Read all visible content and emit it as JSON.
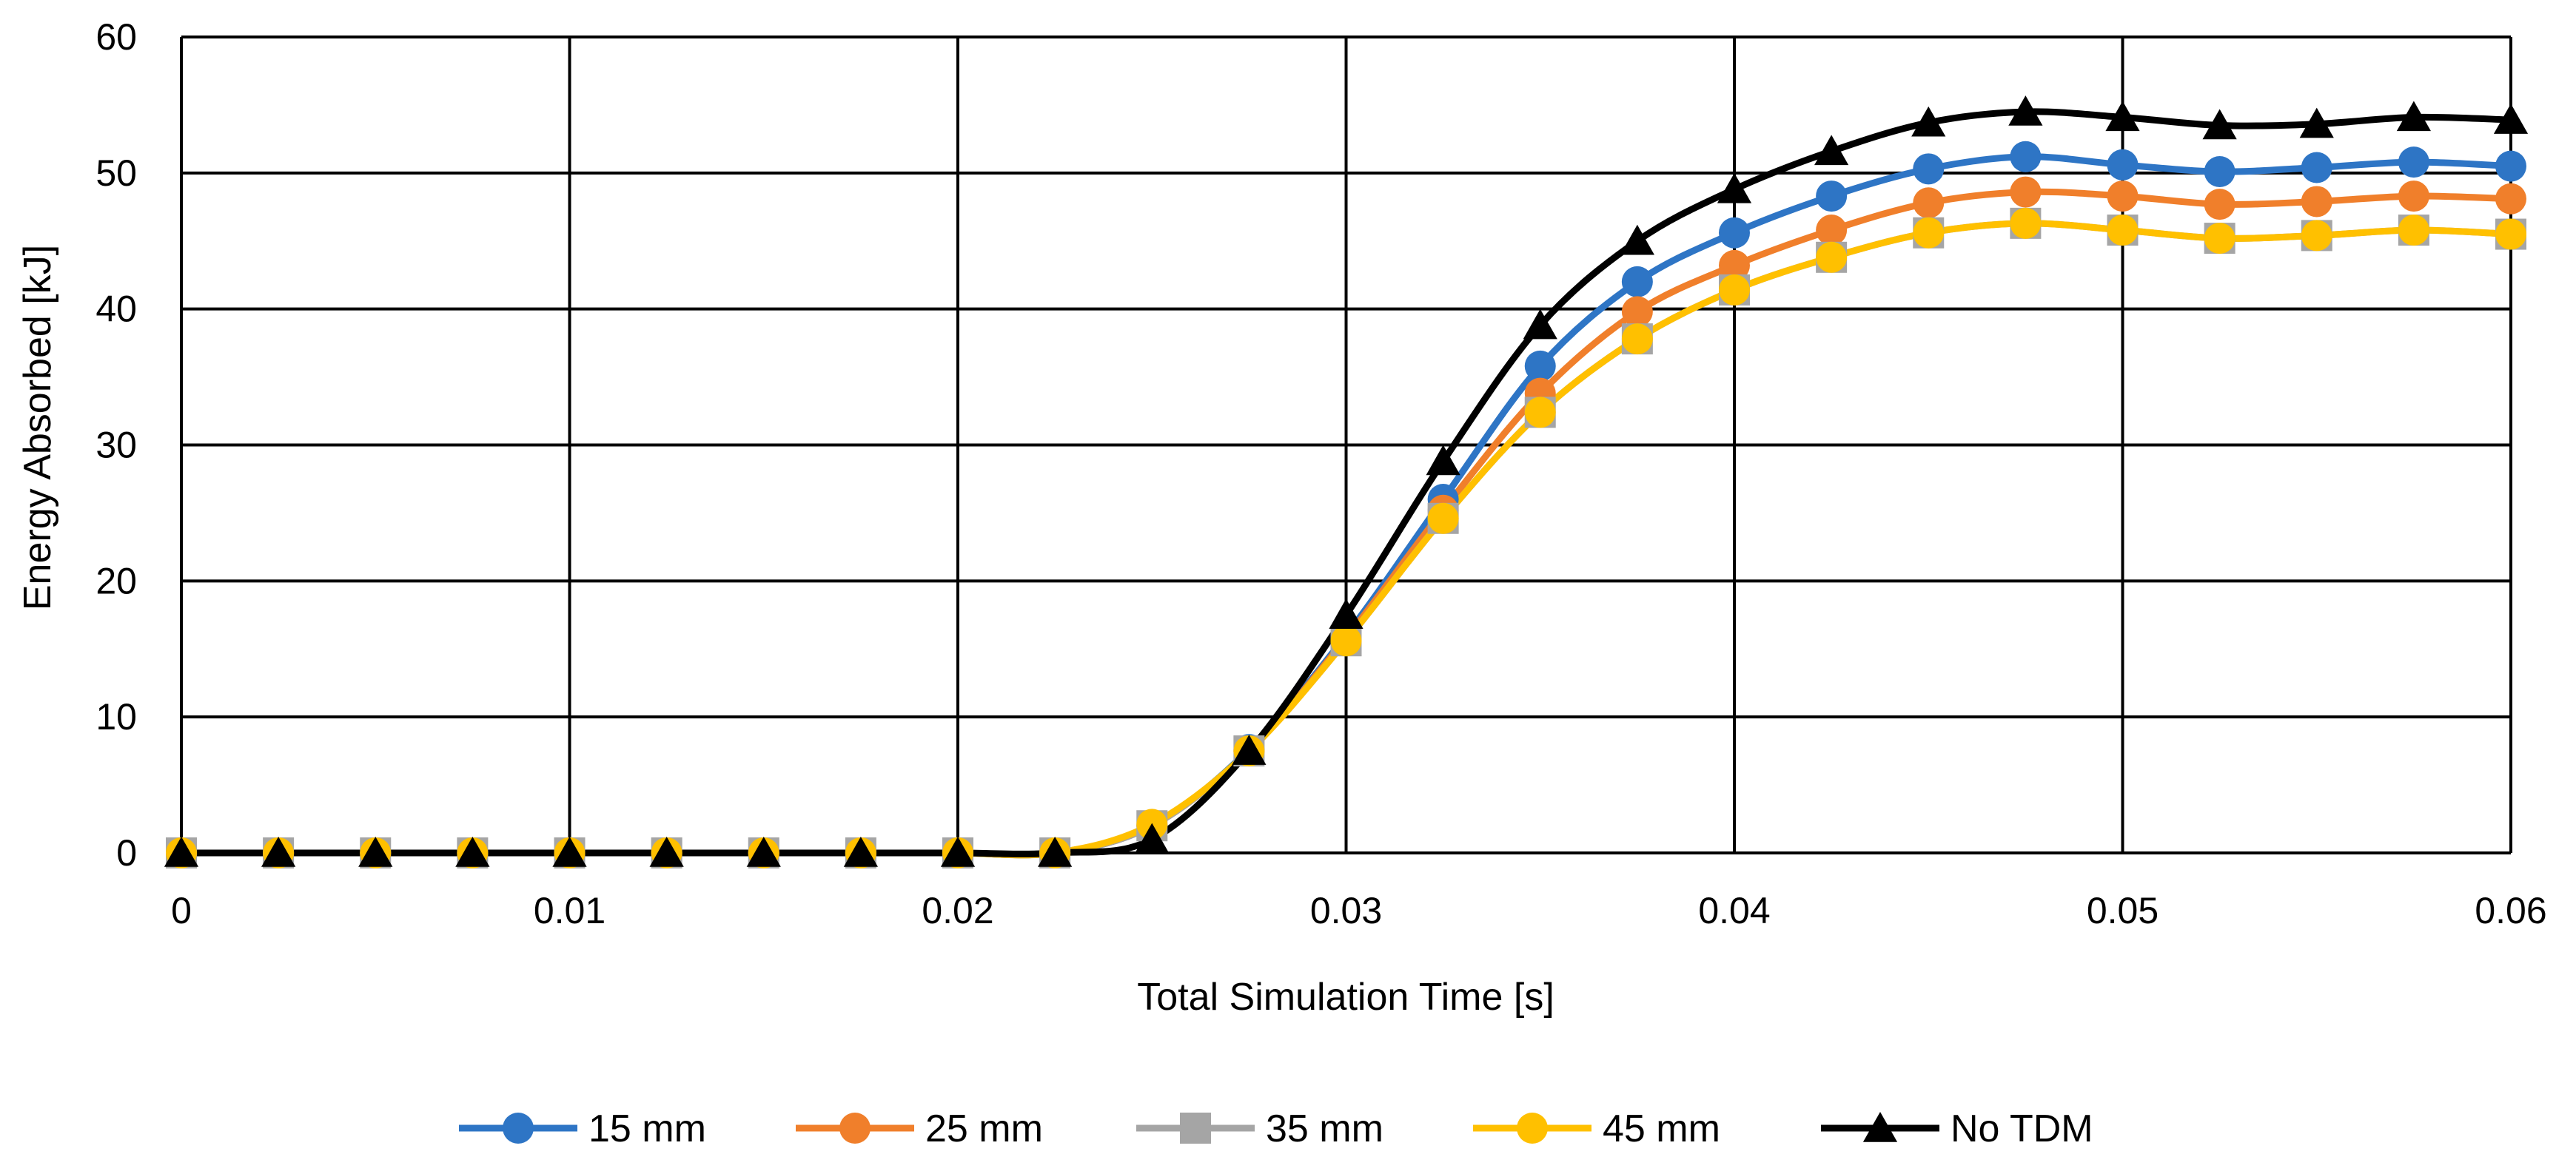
{
  "chart_data": {
    "type": "line",
    "title": "",
    "xlabel": "Total Simulation Time [s]",
    "ylabel": "Energy Absorbed [kJ]",
    "xlim": [
      0,
      0.06
    ],
    "ylim": [
      0,
      60
    ],
    "x_ticks": [
      0,
      0.01,
      0.02,
      0.03,
      0.04,
      0.05,
      0.06
    ],
    "x_tick_labels": [
      "0",
      "0.01",
      "0.02",
      "0.03",
      "0.04",
      "0.05",
      "0.06"
    ],
    "y_ticks": [
      0,
      10,
      20,
      30,
      40,
      50,
      60
    ],
    "y_tick_labels": [
      "0",
      "10",
      "20",
      "30",
      "40",
      "50",
      "60"
    ],
    "grid": true,
    "legend_position": "bottom",
    "x": [
      0,
      0.0025,
      0.005,
      0.0075,
      0.01,
      0.0125,
      0.015,
      0.0175,
      0.02,
      0.0225,
      0.025,
      0.0275,
      0.03,
      0.0325,
      0.035,
      0.0375,
      0.04,
      0.0425,
      0.045,
      0.0475,
      0.05,
      0.0525,
      0.055,
      0.0575,
      0.06
    ],
    "series": [
      {
        "name": "15 mm",
        "color": "#2E75C5",
        "marker": "circle",
        "values": [
          0,
          0,
          0,
          0,
          0,
          0,
          0,
          0,
          0,
          0,
          2.0,
          7.6,
          16.0,
          26.0,
          35.8,
          42.0,
          45.6,
          48.3,
          50.3,
          51.2,
          50.6,
          50.1,
          50.4,
          50.8,
          50.5
        ]
      },
      {
        "name": "25 mm",
        "color": "#F07F2B",
        "marker": "circle",
        "values": [
          0,
          0,
          0,
          0,
          0,
          0,
          0,
          0,
          0,
          0,
          2.0,
          7.5,
          15.8,
          25.2,
          33.8,
          39.8,
          43.2,
          45.8,
          47.8,
          48.6,
          48.3,
          47.7,
          47.9,
          48.3,
          48.1
        ]
      },
      {
        "name": "35 mm",
        "color": "#A5A5A5",
        "marker": "square",
        "values": [
          0,
          0,
          0,
          0,
          0,
          0,
          0,
          0,
          0,
          0,
          2.0,
          7.5,
          15.6,
          24.6,
          32.4,
          37.8,
          41.4,
          43.8,
          45.6,
          46.3,
          45.8,
          45.2,
          45.4,
          45.8,
          45.5
        ]
      },
      {
        "name": "45 mm",
        "color": "#FFC000",
        "marker": "circle",
        "values": [
          0,
          0,
          0,
          0,
          0,
          0,
          0,
          0,
          0,
          0,
          2.1,
          7.5,
          15.6,
          24.6,
          32.4,
          37.8,
          41.4,
          43.8,
          45.6,
          46.3,
          45.8,
          45.2,
          45.4,
          45.8,
          45.5
        ]
      },
      {
        "name": "No TDM",
        "color": "#000000",
        "marker": "triangle",
        "values": [
          0,
          0,
          0,
          0,
          0,
          0,
          0,
          0,
          0,
          0,
          1.0,
          7.5,
          17.5,
          28.8,
          38.8,
          45.0,
          48.8,
          51.6,
          53.7,
          54.5,
          54.1,
          53.5,
          53.6,
          54.1,
          53.9
        ]
      }
    ]
  }
}
